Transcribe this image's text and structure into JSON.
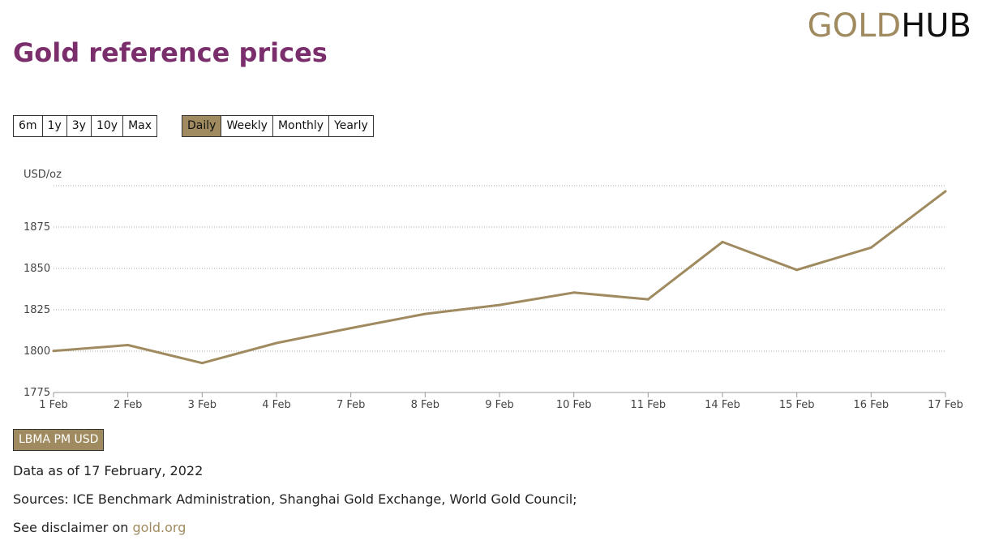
{
  "page": {
    "title": "Gold reference prices"
  },
  "logo": {
    "gold": "GOLD",
    "hub": "HUB"
  },
  "range_buttons": [
    "6m",
    "1y",
    "3y",
    "10y",
    "Max"
  ],
  "frequency_buttons": [
    "Daily",
    "Weekly",
    "Monthly",
    "Yearly"
  ],
  "active_frequency": "Daily",
  "series_button": "LBMA PM USD",
  "footer": {
    "data_as_of": "Data as of 17 February, 2022",
    "sources": "Sources: ICE Benchmark Administration, Shanghai Gold Exchange, World Gold Council;",
    "disclaimer_prefix": "See disclaimer on ",
    "disclaimer_link": "gold.org"
  },
  "colors": {
    "accent": "#a08b60",
    "title": "#7a2e6c"
  },
  "chart_data": {
    "type": "line",
    "ylabel": "USD/oz",
    "categories": [
      "1 Feb",
      "2 Feb",
      "3 Feb",
      "4 Feb",
      "7 Feb",
      "8 Feb",
      "9 Feb",
      "10 Feb",
      "11 Feb",
      "14 Feb",
      "15 Feb",
      "16 Feb",
      "17 Feb"
    ],
    "series": [
      {
        "values": [
          1800.1,
          1803.7,
          1792.8,
          1804.9,
          1813.9,
          1822.5,
          1827.9,
          1835.4,
          1831.3,
          1866.0,
          1849.1,
          1862.6,
          1896.6
        ]
      }
    ],
    "yticks": [
      1775,
      1800,
      1825,
      1850,
      1875
    ],
    "ylim": [
      1775,
      1900
    ],
    "grid": true,
    "line_color": "#a08b60"
  }
}
